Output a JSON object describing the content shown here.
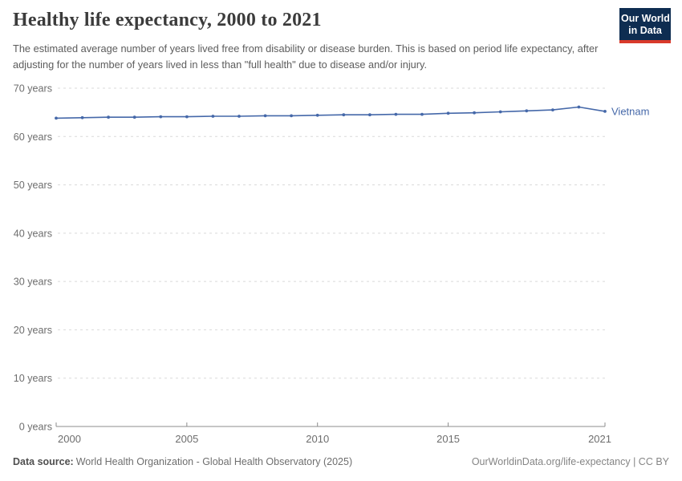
{
  "header": {
    "title": "Healthy life expectancy, 2000 to 2021",
    "subtitle": "The estimated average number of years lived free from disability or disease burden. This is based on period life expectancy, after adjusting for the number of years lived in less than \"full health\" due to disease and/or injury.",
    "logo": {
      "line1": "Our World",
      "line2": "in Data"
    }
  },
  "chart_data": {
    "type": "line",
    "title": "Healthy life expectancy, 2000 to 2021",
    "x": [
      2000,
      2001,
      2002,
      2003,
      2004,
      2005,
      2006,
      2007,
      2008,
      2009,
      2010,
      2011,
      2012,
      2013,
      2014,
      2015,
      2016,
      2017,
      2018,
      2019,
      2020,
      2021
    ],
    "series": [
      {
        "name": "Vietnam",
        "color": "#4568a9",
        "values": [
          63.8,
          63.9,
          64.0,
          64.0,
          64.1,
          64.1,
          64.2,
          64.2,
          64.3,
          64.3,
          64.4,
          64.5,
          64.5,
          64.6,
          64.6,
          64.8,
          64.9,
          65.1,
          65.3,
          65.5,
          66.1,
          65.2
        ]
      }
    ],
    "xlabel": "",
    "ylabel": "",
    "xlim": [
      2000,
      2021
    ],
    "ylim": [
      0,
      70
    ],
    "yticks": [
      0,
      10,
      20,
      30,
      40,
      50,
      60,
      70
    ],
    "ytick_suffix": " years",
    "xticks": [
      2000,
      2005,
      2010,
      2015,
      2021
    ],
    "grid": "horizontal-dashed",
    "legend_position": "end-of-line-label",
    "end_label": "Vietnam"
  },
  "footer": {
    "source_label": "Data source:",
    "source_text": "World Health Organization - Global Health Observatory (2025)",
    "credit": "OurWorldinData.org/life-expectancy | CC BY"
  },
  "colors": {
    "series_blue": "#4568a9",
    "gridline": "#d9d9d9",
    "axis": "#8c8c8c",
    "tick_label": "#6d6d6d",
    "logo_navy": "#0e2d51",
    "logo_red": "#d93a2b"
  }
}
